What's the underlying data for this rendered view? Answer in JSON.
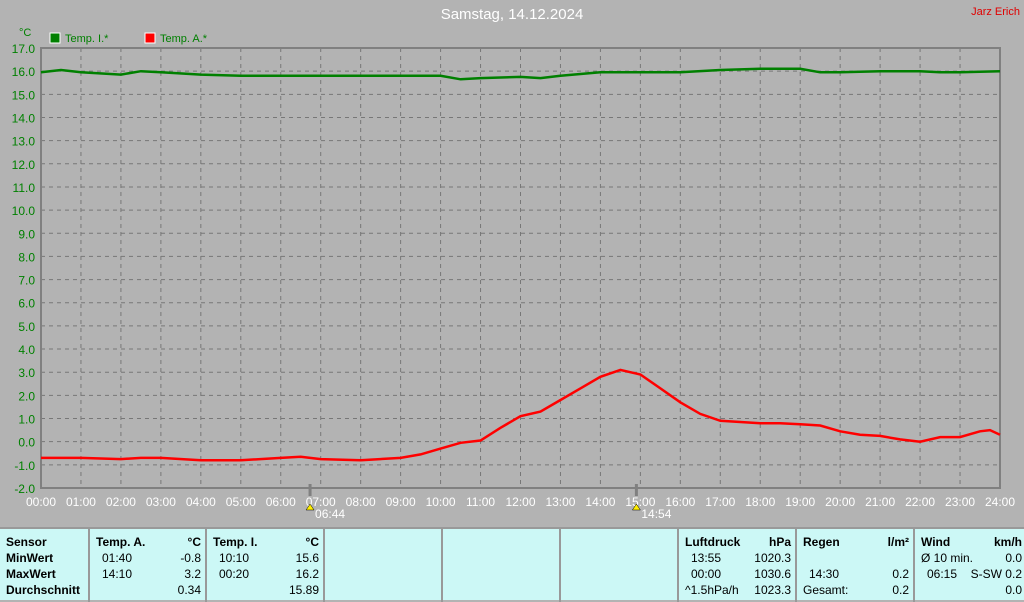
{
  "title": "Samstag, 14.12.2024",
  "author": "Jarz Erich",
  "chart_data": {
    "type": "line",
    "title": "Samstag, 14.12.2024",
    "ylabel": "°C",
    "ylim": [
      -2.0,
      17.0
    ],
    "yticks": [
      "17.0",
      "16.0",
      "15.0",
      "14.0",
      "13.0",
      "12.0",
      "11.0",
      "10.0",
      "9.0",
      "8.0",
      "7.0",
      "6.0",
      "5.0",
      "4.0",
      "3.0",
      "2.0",
      "1.0",
      "0.0",
      "-1.0",
      "-2.0"
    ],
    "xticks": [
      "00:00",
      "01:00",
      "02:00",
      "03:00",
      "04:00",
      "05:00",
      "06:00",
      "07:00",
      "08:00",
      "09:00",
      "10:00",
      "11:00",
      "12:00",
      "13:00",
      "14:00",
      "15:00",
      "16:00",
      "17:00",
      "18:00",
      "19:00",
      "20:00",
      "21:00",
      "22:00",
      "23:00",
      "24:00"
    ],
    "xlim": [
      0,
      24
    ],
    "grid": true,
    "legend": "top-left",
    "sunrise": "06:44",
    "sunset": "14:54",
    "series": [
      {
        "name": "Temp. I.*",
        "color": "#008000",
        "x": [
          0,
          0.5,
          1,
          2,
          2.5,
          3,
          4,
          5,
          6,
          7,
          8,
          9,
          10,
          10.5,
          11,
          12,
          12.5,
          13,
          14,
          15,
          16,
          17,
          18,
          19,
          19.5,
          20,
          21,
          22,
          22.5,
          23,
          24
        ],
        "y": [
          15.95,
          16.05,
          15.95,
          15.85,
          16.0,
          15.95,
          15.85,
          15.8,
          15.8,
          15.8,
          15.8,
          15.8,
          15.8,
          15.65,
          15.7,
          15.75,
          15.7,
          15.8,
          15.95,
          15.95,
          15.95,
          16.05,
          16.1,
          16.1,
          15.95,
          15.95,
          16.0,
          16.0,
          15.95,
          15.95,
          16.0
        ]
      },
      {
        "name": "Temp. A.*",
        "color": "#ff0000",
        "x": [
          0,
          1,
          2,
          2.5,
          3,
          4,
          5,
          6,
          6.5,
          7,
          8,
          9,
          9.5,
          10,
          10.5,
          11,
          11.5,
          12,
          12.5,
          13,
          13.5,
          14,
          14.5,
          15,
          15.5,
          16,
          16.5,
          17,
          17.5,
          18,
          18.5,
          19,
          19.5,
          20,
          20.5,
          21,
          21.5,
          22,
          22.5,
          23,
          23.5,
          23.75,
          24
        ],
        "y": [
          -0.7,
          -0.7,
          -0.75,
          -0.7,
          -0.7,
          -0.8,
          -0.8,
          -0.7,
          -0.65,
          -0.75,
          -0.8,
          -0.7,
          -0.55,
          -0.3,
          -0.05,
          0.05,
          0.6,
          1.1,
          1.3,
          1.8,
          2.3,
          2.8,
          3.1,
          2.9,
          2.3,
          1.7,
          1.2,
          0.9,
          0.85,
          0.8,
          0.8,
          0.75,
          0.7,
          0.45,
          0.3,
          0.25,
          0.1,
          0.0,
          0.2,
          0.2,
          0.45,
          0.5,
          0.3
        ]
      }
    ]
  },
  "table": {
    "sensor": {
      "header": "Sensor",
      "rows": [
        "MinWert",
        "MaxWert",
        "Durchschnitt"
      ]
    },
    "temp_a": {
      "header": "Temp. A.",
      "unit": "°C",
      "min_time": "01:40",
      "min": "-0.8",
      "max_time": "14:10",
      "max": "3.2",
      "avg": "0.34"
    },
    "temp_i": {
      "header": "Temp. I.",
      "unit": "°C",
      "min_time": "10:10",
      "min": "15.6",
      "max_time": "00:20",
      "max": "16.2",
      "avg": "15.89"
    },
    "luftdruck": {
      "header": "Luftdruck",
      "unit": "hPa",
      "min_time": "13:55",
      "min": "1020.3",
      "max_time": "00:00",
      "max": "1030.6",
      "trend": "^1.5hPa/h",
      "avg": "1023.3"
    },
    "regen": {
      "header": "Regen",
      "unit": "l/m²",
      "max_time": "14:30",
      "max": "0.2",
      "total_label": "Gesamt:",
      "total": "0.2"
    },
    "wind": {
      "header": "Wind",
      "unit": "km/h",
      "avg_label": "Ø 10 min.",
      "avg": "0.0",
      "max_time": "06:15",
      "max": "S-SW 0.2",
      "last": "0.0"
    }
  }
}
